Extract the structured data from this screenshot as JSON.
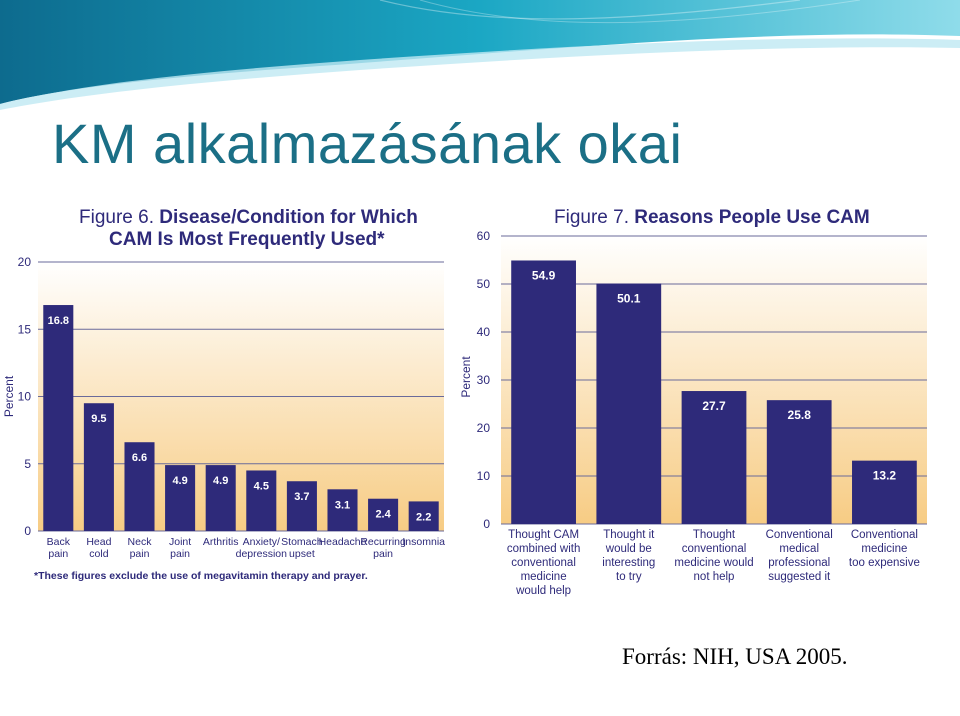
{
  "slide": {
    "title": "KM alkalmazásának okai",
    "source": "Forrás: NIH, USA 2005."
  },
  "theme": {
    "bar_color": "#2e2a7a",
    "title_color": "#1b6f86",
    "plot_bg_top": "#ffffff",
    "plot_bg_bottom": "#f7cc84",
    "gridline_color": "#6a6a9a"
  },
  "chart_data": [
    {
      "type": "bar",
      "title_prefix": "Figure 6.",
      "title_lines": [
        "Disease/Condition for Which",
        "CAM Is Most Frequently Used*"
      ],
      "ylabel": "Percent",
      "ylim": [
        0,
        20
      ],
      "yticks": [
        0,
        5,
        10,
        15,
        20
      ],
      "grid": true,
      "categories": [
        [
          "Back",
          "pain"
        ],
        [
          "Head",
          "cold"
        ],
        [
          "Neck",
          "pain"
        ],
        [
          "Joint",
          "pain"
        ],
        [
          "Arthritis"
        ],
        [
          "Anxiety/",
          "depression"
        ],
        [
          "Stomach",
          "upset"
        ],
        [
          "Headache"
        ],
        [
          "Recurring",
          "pain"
        ],
        [
          "Insomnia"
        ]
      ],
      "values": [
        16.8,
        9.5,
        6.6,
        4.9,
        4.9,
        4.5,
        3.7,
        3.1,
        2.4,
        2.2
      ],
      "value_labels": [
        "16.8",
        "9.5",
        "6.6",
        "4.9",
        "4.9",
        "4.5",
        "3.7",
        "3.1",
        "2.4",
        "2.2"
      ],
      "footnote": "*These figures exclude the use of megavitamin therapy and prayer."
    },
    {
      "type": "bar",
      "title_prefix": "Figure 7.",
      "title_lines": [
        "Reasons People Use CAM"
      ],
      "ylabel": "Percent",
      "ylim": [
        0,
        60
      ],
      "yticks": [
        0,
        10,
        20,
        30,
        40,
        50,
        60
      ],
      "grid": true,
      "categories": [
        [
          "Thought CAM",
          "combined with",
          "conventional",
          "medicine",
          "would help"
        ],
        [
          "Thought it",
          "would be",
          "interesting",
          "to try"
        ],
        [
          "Thought",
          "conventional",
          "medicine would",
          "not help"
        ],
        [
          "Conventional",
          "medical",
          "professional",
          "suggested it"
        ],
        [
          "Conventional",
          "medicine",
          "too expensive"
        ]
      ],
      "values": [
        54.9,
        50.1,
        27.7,
        25.8,
        13.2
      ],
      "value_labels": [
        "54.9",
        "50.1",
        "27.7",
        "25.8",
        "13.2"
      ]
    }
  ]
}
